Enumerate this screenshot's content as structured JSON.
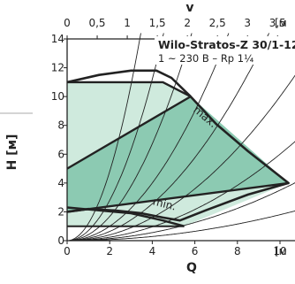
{
  "chart_data": {
    "type": "line",
    "title": "Wilo-Stratos-Z 30/1-12",
    "subtitle": "1 ~ 230 B – Rp 1¼",
    "xlabel": "Q",
    "xlabel_top": "v",
    "ylabel": "H [м]",
    "x_unit_label": "[м",
    "x2_unit_label": "[м",
    "xlim": [
      0,
      11.5
    ],
    "ylim": [
      0,
      14
    ],
    "x_ticks": [
      0,
      2,
      4,
      6,
      8,
      10
    ],
    "y_ticks": [
      0,
      2,
      4,
      6,
      8,
      10,
      12,
      14
    ],
    "x2_ticks": [
      "0",
      "0,5",
      "1",
      "1,5",
      "2",
      "2,5",
      "3",
      "3,5"
    ],
    "x2_values": [
      0,
      0.5,
      1,
      1.5,
      2,
      2.5,
      3,
      3.5
    ],
    "x2_per_x": 0.354,
    "grid": false,
    "annotations": [
      {
        "text": "max.",
        "x": 5.9,
        "y": 9.0
      },
      {
        "text": "min.",
        "x": 4.0,
        "y": 2.5
      }
    ],
    "colors": {
      "light_fill": "#cfeadd",
      "dark_fill": "#8ccab2",
      "curve": "#222222"
    },
    "series": [
      {
        "role": "dark-region",
        "values": [
          [
            0,
            5.0
          ],
          [
            5.8,
            10.0
          ],
          [
            10.4,
            4.0
          ],
          [
            0,
            2.0
          ]
        ]
      },
      {
        "role": "light-upper",
        "values": [
          [
            0,
            11.0
          ],
          [
            4.5,
            11.0
          ],
          [
            5.8,
            10.0
          ],
          [
            0,
            5.0
          ]
        ]
      },
      {
        "role": "light-lower",
        "values": [
          [
            0,
            2.0
          ],
          [
            10.4,
            4.0
          ],
          [
            5.5,
            1.0
          ],
          [
            0,
            1.0
          ]
        ]
      },
      {
        "role": "max-curve",
        "values": [
          [
            0,
            11.0
          ],
          [
            1.5,
            11.5
          ],
          [
            3.0,
            11.8
          ],
          [
            4.2,
            11.8
          ],
          [
            4.9,
            11.3
          ],
          [
            5.8,
            10.0
          ],
          [
            7.0,
            8.1
          ],
          [
            8.5,
            6.2
          ],
          [
            10.4,
            4.0
          ],
          [
            8.5,
            3.2
          ],
          [
            6.5,
            2.1
          ],
          [
            5.3,
            1.4
          ],
          [
            4.5,
            1.6
          ],
          [
            3.5,
            1.9
          ],
          [
            2.2,
            2.1
          ],
          [
            1.0,
            2.2
          ],
          [
            0,
            2.0
          ]
        ]
      },
      {
        "role": "inner-top",
        "values": [
          [
            0,
            11.0
          ],
          [
            4.5,
            11.0
          ],
          [
            5.8,
            10.0
          ]
        ]
      },
      {
        "role": "inner-diag",
        "values": [
          [
            0,
            5.0
          ],
          [
            5.8,
            10.0
          ]
        ]
      },
      {
        "role": "inner-low",
        "values": [
          [
            0,
            2.0
          ],
          [
            10.4,
            4.0
          ]
        ]
      },
      {
        "role": "min-curve",
        "values": [
          [
            0,
            2.3
          ],
          [
            1.5,
            2.1
          ],
          [
            3.0,
            1.9
          ],
          [
            4.5,
            1.4
          ],
          [
            5.5,
            1.0
          ]
        ]
      },
      {
        "role": "bottom-line",
        "values": [
          [
            0,
            1.0
          ],
          [
            5.5,
            1.0
          ]
        ]
      },
      {
        "role": "system-curves",
        "values": [
          [
            0.018,
            0.025
          ],
          [
            0.035,
            0.045
          ],
          [
            0.06,
            0.08
          ],
          [
            0.1,
            0.13
          ],
          [
            0.16,
            0.2
          ],
          [
            0.25,
            0.32
          ],
          [
            0.42,
            0.5
          ],
          [
            0.7,
            0.85
          ],
          [
            1.2,
            1.5
          ]
        ]
      }
    ]
  }
}
